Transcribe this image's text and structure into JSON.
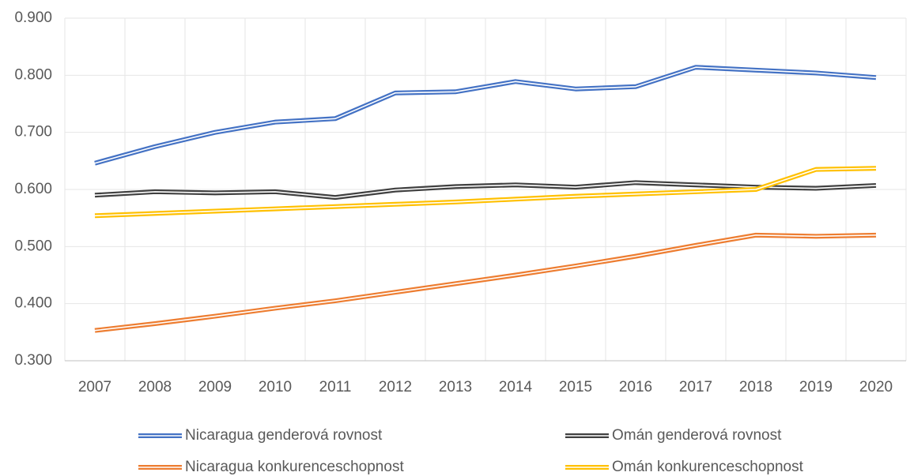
{
  "chart_data": {
    "type": "line",
    "categories": [
      "2007",
      "2008",
      "2009",
      "2010",
      "2011",
      "2012",
      "2013",
      "2014",
      "2015",
      "2016",
      "2017",
      "2018",
      "2019",
      "2020"
    ],
    "series": [
      {
        "name": "Nicaragua genderová rovnost",
        "color": "#4472c4",
        "values": [
          0.646,
          0.675,
          0.7,
          0.718,
          0.724,
          0.769,
          0.771,
          0.789,
          0.776,
          0.78,
          0.814,
          0.809,
          0.804,
          0.796
        ]
      },
      {
        "name": "Omán genderová rovnost",
        "color": "#404040",
        "values": [
          0.59,
          0.596,
          0.594,
          0.596,
          0.586,
          0.599,
          0.605,
          0.608,
          0.604,
          0.612,
          0.608,
          0.604,
          0.602,
          0.607
        ]
      },
      {
        "name": "Nicaragua konkurenceschopnost",
        "color": "#ed7d31",
        "values": [
          0.353,
          0.365,
          0.378,
          0.392,
          0.405,
          0.42,
          0.435,
          0.45,
          0.466,
          0.483,
          0.502,
          0.52,
          0.518,
          0.52
        ]
      },
      {
        "name": "Omán konkurenceschopnost",
        "color": "#ffc000",
        "values": [
          0.554,
          0.558,
          0.562,
          0.566,
          0.57,
          0.574,
          0.578,
          0.583,
          0.588,
          0.592,
          0.596,
          0.6,
          0.635,
          0.637
        ]
      }
    ],
    "ylim": [
      0.3,
      0.9
    ],
    "yticks": [
      {
        "value": 0.3,
        "label": "0.300"
      },
      {
        "value": 0.4,
        "label": "0.400"
      },
      {
        "value": 0.5,
        "label": "0.500"
      },
      {
        "value": 0.6,
        "label": "0.600"
      },
      {
        "value": 0.7,
        "label": "0.700"
      },
      {
        "value": 0.8,
        "label": "0.800"
      },
      {
        "value": 0.9,
        "label": "0.900"
      }
    ],
    "grid": true,
    "legend": "bottom"
  }
}
